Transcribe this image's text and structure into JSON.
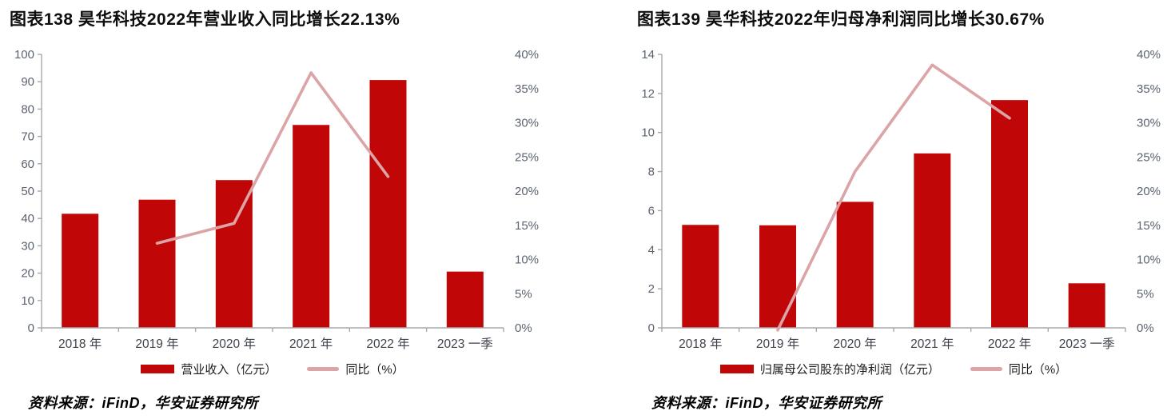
{
  "colors": {
    "bar": "#c00606",
    "line": "#dba4a7",
    "axis": "#a8a8a8",
    "y_label": "#5b6370",
    "x_label": "#3d434c",
    "title": "#0d0d0d"
  },
  "chart_data": [
    {
      "type": "bar",
      "combo": "bar+line",
      "title": "图表138  昊华科技2022年营业收入同比增长22.13%",
      "categories": [
        "2018 年",
        "2019 年",
        "2020 年",
        "2021 年",
        "2022 年",
        "2023 一季"
      ],
      "series": [
        {
          "name": "营业收入（亿元）",
          "kind": "bar",
          "axis": "left",
          "values": [
            41.71,
            46.87,
            54.03,
            74.19,
            90.61,
            20.57
          ]
        },
        {
          "name": "同比（%）",
          "kind": "line",
          "axis": "right",
          "values": [
            null,
            12.37,
            15.28,
            37.31,
            22.13,
            null
          ]
        }
      ],
      "left_axis": {
        "min": 0,
        "max": 100,
        "step": 10,
        "tick_labels": [
          "0",
          "10",
          "20",
          "30",
          "40",
          "50",
          "60",
          "70",
          "80",
          "90",
          "100"
        ]
      },
      "right_axis": {
        "min": 0,
        "max": 40,
        "step": 5,
        "tick_labels": [
          "0%",
          "5%",
          "10%",
          "15%",
          "20%",
          "25%",
          "30%",
          "35%",
          "40%"
        ]
      },
      "grid": false,
      "legend_position": "bottom",
      "source": "资料来源：iFinD，华安证券研究所"
    },
    {
      "type": "bar",
      "combo": "bar+line",
      "title": "图表139  昊华科技2022年归母净利润同比增长30.67%",
      "categories": [
        "2018 年",
        "2019 年",
        "2020 年",
        "2021 年",
        "2022 年",
        "2023 一季"
      ],
      "series": [
        {
          "name": "归属母公司股东的净利润（亿元）",
          "kind": "bar",
          "axis": "left",
          "values": [
            5.27,
            5.25,
            6.45,
            8.93,
            11.66,
            2.28
          ]
        },
        {
          "name": "同比（%）",
          "kind": "line",
          "axis": "right",
          "values": [
            null,
            -0.33,
            22.86,
            38.45,
            30.67,
            null
          ]
        }
      ],
      "left_axis": {
        "min": 0,
        "max": 14,
        "step": 2,
        "tick_labels": [
          "0",
          "2",
          "4",
          "6",
          "8",
          "10",
          "12",
          "14"
        ]
      },
      "right_axis": {
        "min": 0,
        "max": 40,
        "step": 5,
        "tick_labels": [
          "0%",
          "5%",
          "10%",
          "15%",
          "20%",
          "25%",
          "30%",
          "35%",
          "40%"
        ]
      },
      "grid": false,
      "legend_position": "bottom",
      "source": "资料来源：iFinD，华安证券研究所"
    }
  ]
}
